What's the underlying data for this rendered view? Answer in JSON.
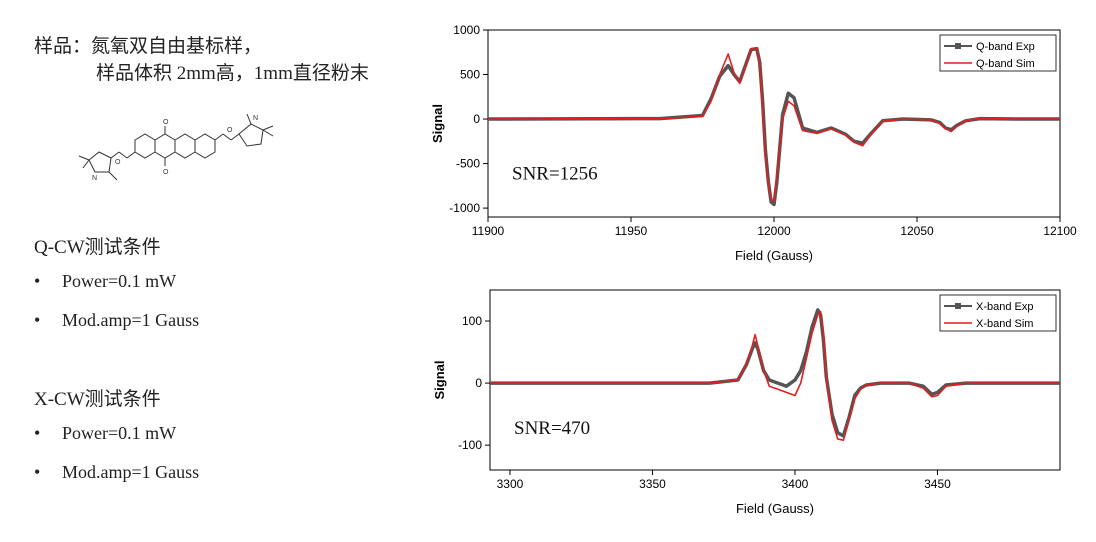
{
  "sample": {
    "line1": "样品：氮氧双自由基标样，",
    "line2": "样品体积 2mm高，1mm直径粉末"
  },
  "q_conditions": {
    "title": "Q-CW测试条件",
    "items": [
      "Power=0.1 mW",
      "Mod.amp=1 Gauss"
    ]
  },
  "x_conditions": {
    "title": "X-CW测试条件",
    "items": [
      "Power=0.1 mW",
      "Mod.amp=1 Gauss"
    ]
  },
  "colors": {
    "exp": "#555555",
    "sim": "#e02020",
    "axis": "#000000"
  },
  "chart_data": [
    {
      "type": "line",
      "id": "q",
      "xlabel": "Field (Gauss)",
      "ylabel": "Signal",
      "xlim": [
        11900,
        12100
      ],
      "ylim": [
        -1100,
        1000
      ],
      "xticks": [
        11900,
        11950,
        12000,
        12050,
        12100
      ],
      "yticks": [
        1000,
        500,
        0,
        -500,
        -1000
      ],
      "annotation": "SNR=1256",
      "legend": "top-right",
      "series": [
        {
          "name": "Q-band Exp",
          "style": "exp",
          "x": [
            11900,
            11960,
            11975,
            11978,
            11981,
            11984,
            11986,
            11988,
            11990,
            11992,
            11994,
            11995,
            11996,
            11997,
            11998,
            11999,
            12000,
            12001,
            12003,
            12005,
            12007,
            12010,
            12015,
            12020,
            12025,
            12028,
            12031,
            12034,
            12038,
            12045,
            12055,
            12058,
            12060,
            12062,
            12064,
            12067,
            12072,
            12085,
            12100
          ],
          "y": [
            0,
            5,
            40,
            230,
            480,
            600,
            500,
            420,
            600,
            780,
            790,
            640,
            200,
            -350,
            -700,
            -930,
            -960,
            -700,
            50,
            290,
            240,
            -100,
            -150,
            -100,
            -170,
            -250,
            -270,
            -160,
            -20,
            0,
            -10,
            -40,
            -100,
            -120,
            -70,
            -20,
            5,
            0,
            0
          ]
        },
        {
          "name": "Q-band Sim",
          "style": "sim",
          "x": [
            11900,
            11960,
            11975,
            11978,
            11981,
            11984,
            11986,
            11988,
            11990,
            11992,
            11994,
            11995,
            11996,
            11997,
            11998,
            11999,
            12000,
            12001,
            12003,
            12005,
            12007,
            12010,
            12015,
            12020,
            12025,
            12028,
            12031,
            12034,
            12038,
            12045,
            12055,
            12058,
            12060,
            12062,
            12064,
            12067,
            12072,
            12085,
            12100
          ],
          "y": [
            0,
            5,
            30,
            200,
            500,
            730,
            520,
            400,
            580,
            790,
            800,
            600,
            100,
            -400,
            -720,
            -900,
            -920,
            -650,
            0,
            200,
            150,
            -130,
            -160,
            -110,
            -180,
            -260,
            -300,
            -170,
            -25,
            0,
            -10,
            -50,
            -110,
            -140,
            -80,
            -20,
            5,
            0,
            0
          ]
        }
      ]
    },
    {
      "type": "line",
      "id": "x",
      "xlabel": "Field (Gauss)",
      "ylabel": "Signal",
      "xlim": [
        3293,
        3493
      ],
      "ylim": [
        -140,
        150
      ],
      "xticks": [
        3300,
        3350,
        3400,
        3450
      ],
      "yticks": [
        100,
        0,
        -100
      ],
      "annotation": "SNR=470",
      "legend": "top-right",
      "series": [
        {
          "name": "X-band Exp",
          "style": "exp",
          "x": [
            3293,
            3370,
            3380,
            3383,
            3385,
            3386,
            3387,
            3389,
            3391,
            3394,
            3397,
            3400,
            3402,
            3404,
            3406,
            3408,
            3409,
            3410,
            3411,
            3413,
            3415,
            3417,
            3419,
            3421,
            3423,
            3425,
            3430,
            3440,
            3445,
            3448,
            3450,
            3453,
            3460,
            3493
          ],
          "y": [
            0,
            0,
            5,
            30,
            55,
            65,
            55,
            20,
            5,
            0,
            -5,
            5,
            20,
            50,
            90,
            118,
            110,
            70,
            10,
            -50,
            -80,
            -85,
            -55,
            -20,
            -8,
            -3,
            0,
            0,
            -5,
            -18,
            -15,
            -3,
            0,
            0
          ]
        },
        {
          "name": "X-band Sim",
          "style": "sim",
          "x": [
            3293,
            3370,
            3380,
            3383,
            3385,
            3386,
            3387,
            3389,
            3391,
            3394,
            3397,
            3400,
            3402,
            3404,
            3406,
            3408,
            3409,
            3410,
            3411,
            3413,
            3415,
            3417,
            3419,
            3421,
            3423,
            3425,
            3430,
            3440,
            3445,
            3448,
            3450,
            3453,
            3460,
            3493
          ],
          "y": [
            0,
            0,
            5,
            30,
            60,
            78,
            60,
            20,
            -5,
            -10,
            -15,
            -20,
            0,
            40,
            80,
            110,
            115,
            80,
            10,
            -60,
            -90,
            -92,
            -60,
            -25,
            -10,
            -3,
            0,
            0,
            -8,
            -22,
            -20,
            -5,
            0,
            0
          ]
        }
      ]
    }
  ]
}
